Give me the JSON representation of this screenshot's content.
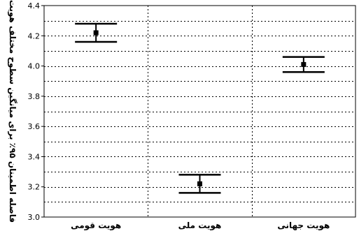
{
  "chart_data": {
    "type": "error-bar",
    "title": "",
    "ylabel": "فاصله اطمینان ۹۵٪ برای میانگین سطوح مختلف هویت",
    "xlabel": "",
    "ylim": [
      3.0,
      4.4
    ],
    "yticks": [
      "3.0",
      "3.2",
      "3.4",
      "3.6",
      "3.8",
      "4.0",
      "4.2",
      "4.4"
    ],
    "minor_grid_step": 0.1,
    "grid": "dotted",
    "categories": [
      "هویت قومی",
      "هویت ملی",
      "هویت جهانی"
    ],
    "points": [
      {
        "category": "هویت قومی",
        "mean": 4.22,
        "lower": 4.16,
        "upper": 4.28
      },
      {
        "category": "هویت ملی",
        "mean": 3.22,
        "lower": 3.16,
        "upper": 3.28
      },
      {
        "category": "هویت جهانی",
        "mean": 4.01,
        "lower": 3.96,
        "upper": 4.06
      }
    ],
    "marker_color": "#000000"
  }
}
